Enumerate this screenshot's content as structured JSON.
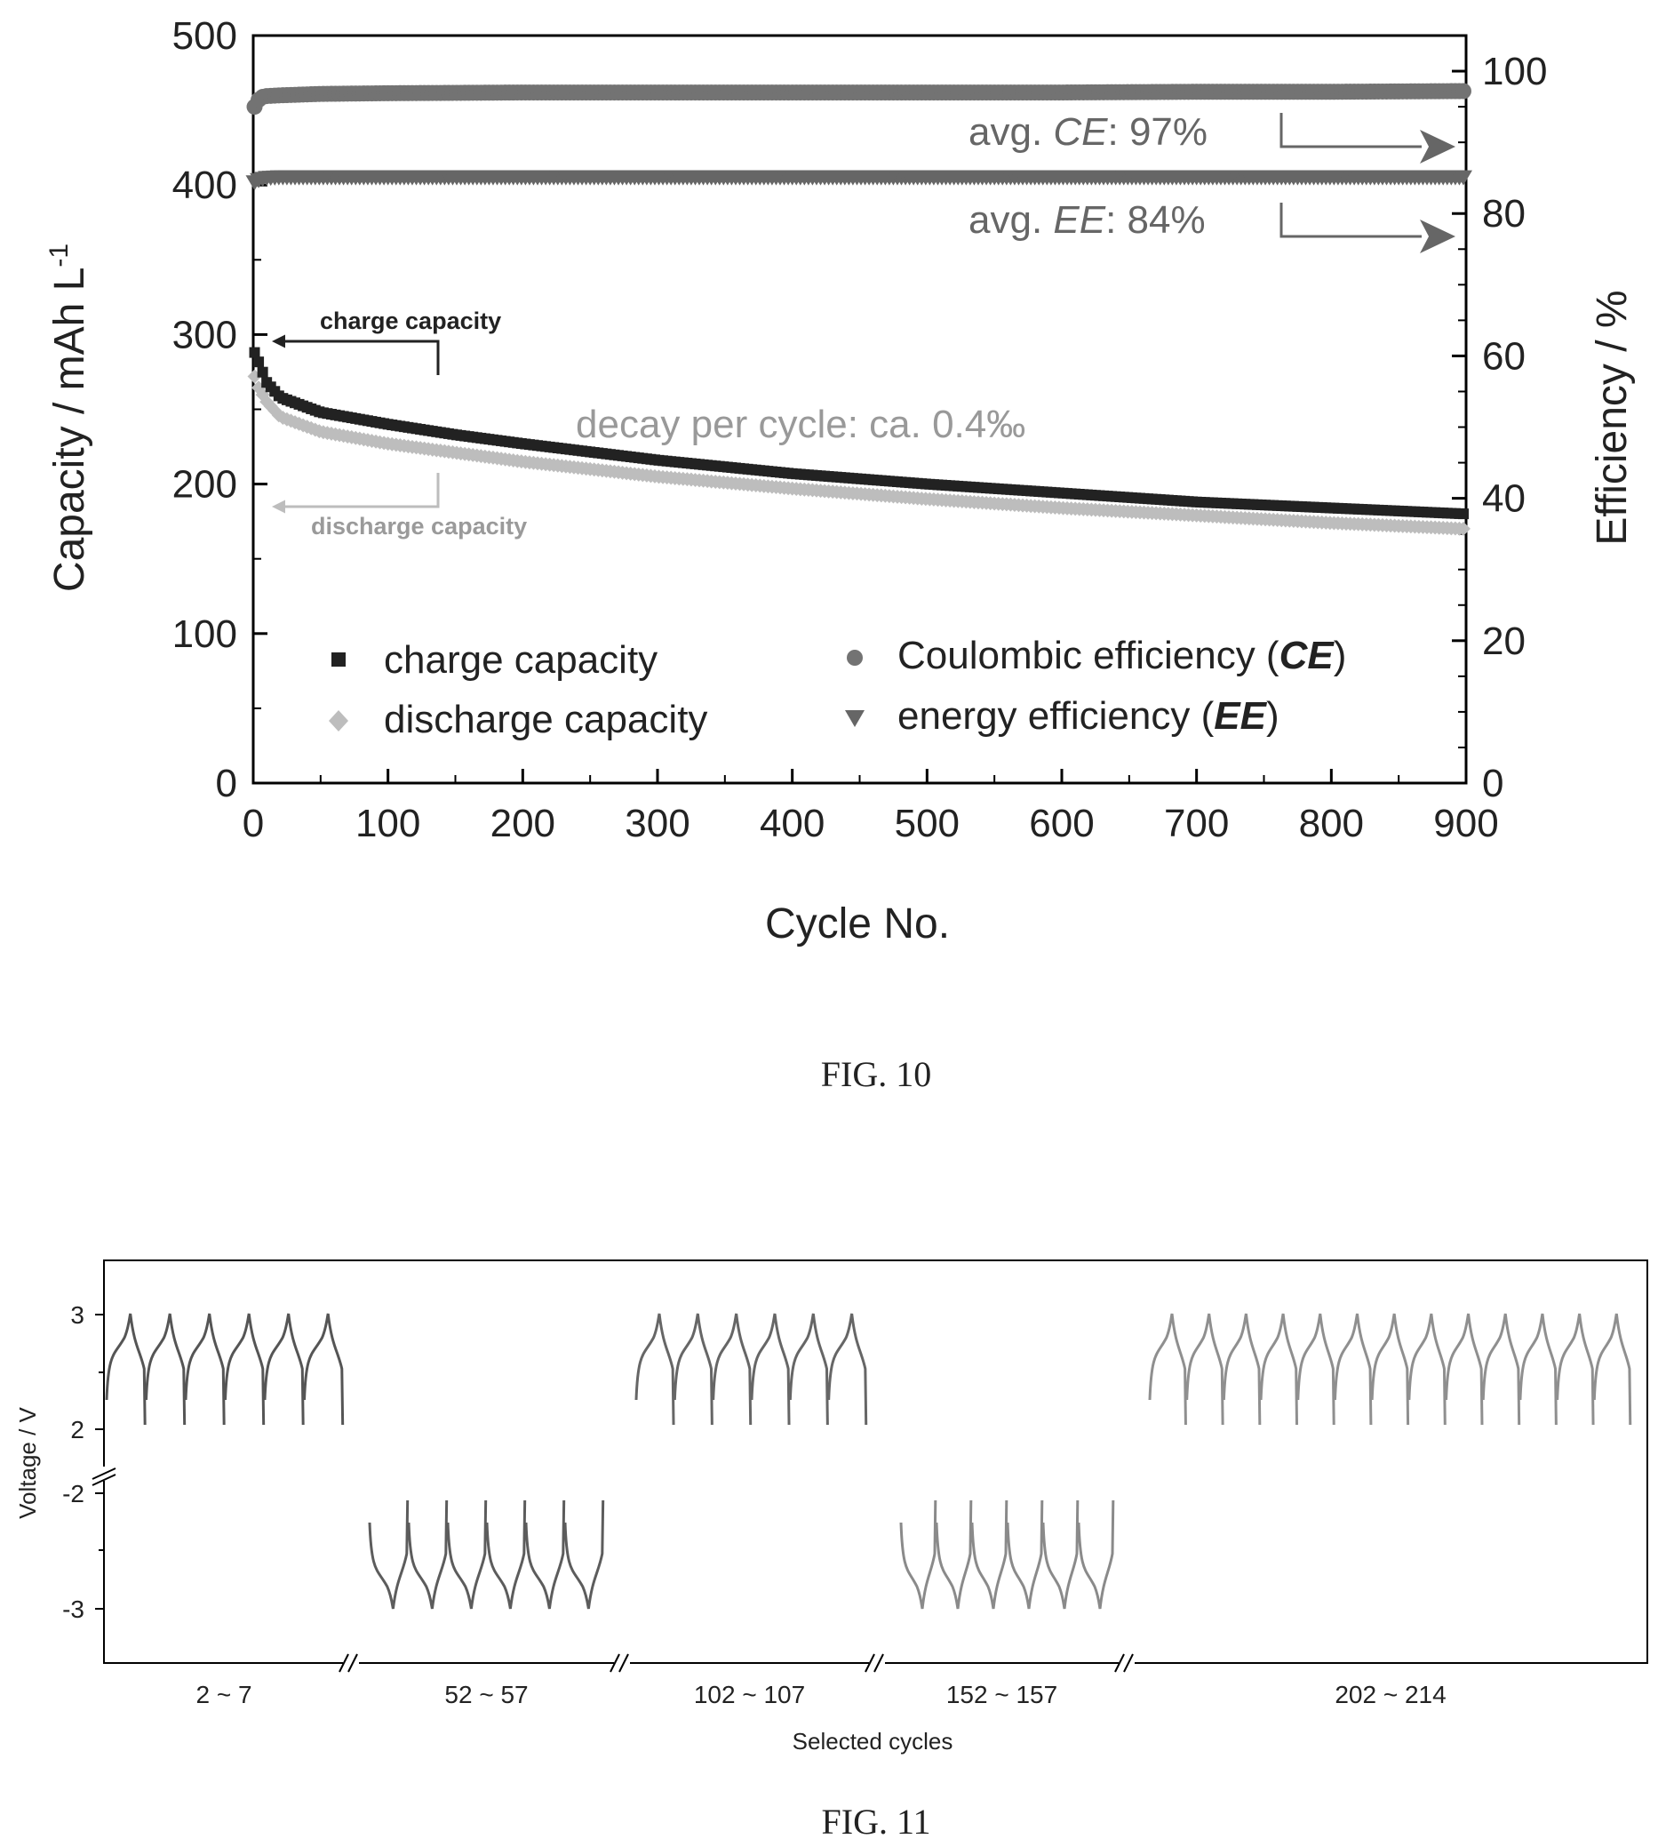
{
  "chart_data": [
    {
      "type": "scatter",
      "caption": "FIG. 10",
      "xlabel": "Cycle No.",
      "ylabel": "Capacity / mAh L",
      "ylabel_sup": "-1",
      "y2label": "Efficiency / %",
      "xlim": [
        0,
        900
      ],
      "ylim": [
        0,
        500
      ],
      "y2lim": [
        0,
        105
      ],
      "xticks": [
        "0",
        "100",
        "200",
        "300",
        "400",
        "500",
        "600",
        "700",
        "800",
        "900"
      ],
      "yticks": [
        "0",
        "100",
        "200",
        "300",
        "400",
        "500"
      ],
      "y2ticks": [
        "0",
        "20",
        "40",
        "60",
        "80",
        "100"
      ],
      "grid": false,
      "legend_position": "bottom",
      "series": [
        {
          "name": "charge capacity",
          "axis": "left",
          "marker": "square",
          "color": "#222222",
          "x": [
            1,
            3,
            10,
            20,
            50,
            100,
            150,
            200,
            300,
            400,
            500,
            600,
            700,
            800,
            900
          ],
          "y": [
            288,
            284,
            268,
            258,
            248,
            240,
            233,
            227,
            216,
            207,
            200,
            194,
            188,
            184,
            180
          ]
        },
        {
          "name": "discharge capacity",
          "axis": "left",
          "marker": "diamond",
          "color": "#bdbdbd",
          "x": [
            1,
            3,
            10,
            20,
            50,
            100,
            150,
            200,
            300,
            400,
            500,
            600,
            700,
            800,
            900
          ],
          "y": [
            272,
            266,
            255,
            245,
            235,
            227,
            221,
            215,
            205,
            197,
            190,
            184,
            179,
            174,
            170
          ]
        },
        {
          "name": "Coulombic efficiency",
          "name_abbr": "CE",
          "axis": "right",
          "marker": "circle",
          "color": "#737373",
          "x": [
            1,
            5,
            10,
            20,
            50,
            100,
            200,
            300,
            400,
            500,
            600,
            700,
            800,
            900
          ],
          "y": [
            95,
            96.3,
            96.5,
            96.6,
            96.8,
            96.9,
            97,
            97,
            97,
            97,
            97,
            97.1,
            97.1,
            97.2
          ]
        },
        {
          "name": "energy efficiency",
          "name_abbr": "EE",
          "axis": "right",
          "marker": "triangle-down",
          "color": "#666666",
          "x": [
            1,
            5,
            10,
            20,
            50,
            100,
            200,
            300,
            400,
            500,
            600,
            700,
            800,
            900
          ],
          "y": [
            84.5,
            84.9,
            85.1,
            85.2,
            85.2,
            85.2,
            85.2,
            85.2,
            85.2,
            85.2,
            85.2,
            85.2,
            85.2,
            85.2
          ]
        }
      ],
      "annotations": {
        "charge_label": "charge capacity",
        "discharge_label": "discharge capacity",
        "decay": "decay per cycle: ca. 0.4‰",
        "ce_prefix": "avg. ",
        "ce_abbr": "CE",
        "ce_suffix": ": 97%",
        "ee_prefix": "avg. ",
        "ee_abbr": "EE",
        "ee_suffix": ": 84%"
      }
    },
    {
      "type": "line",
      "caption": "FIG. 11",
      "xlabel": "Selected cycles",
      "ylabel": "Voltage / V",
      "yticks": [
        "3",
        "2",
        "-2",
        "-3"
      ],
      "groups": [
        {
          "label": "2 ~ 7",
          "cycles": 6,
          "polarity": "positive",
          "color": "#555555"
        },
        {
          "label": "52 ~ 57",
          "cycles": 6,
          "polarity": "negative",
          "color": "#5c5c5c"
        },
        {
          "label": "102 ~ 107",
          "cycles": 6,
          "polarity": "positive",
          "color": "#666666"
        },
        {
          "label": "152 ~ 157",
          "cycles": 6,
          "polarity": "negative",
          "color": "#8a8a8a"
        },
        {
          "label": "202 ~ 214",
          "cycles": 13,
          "polarity": "positive",
          "color": "#8f8f8f"
        }
      ]
    }
  ]
}
